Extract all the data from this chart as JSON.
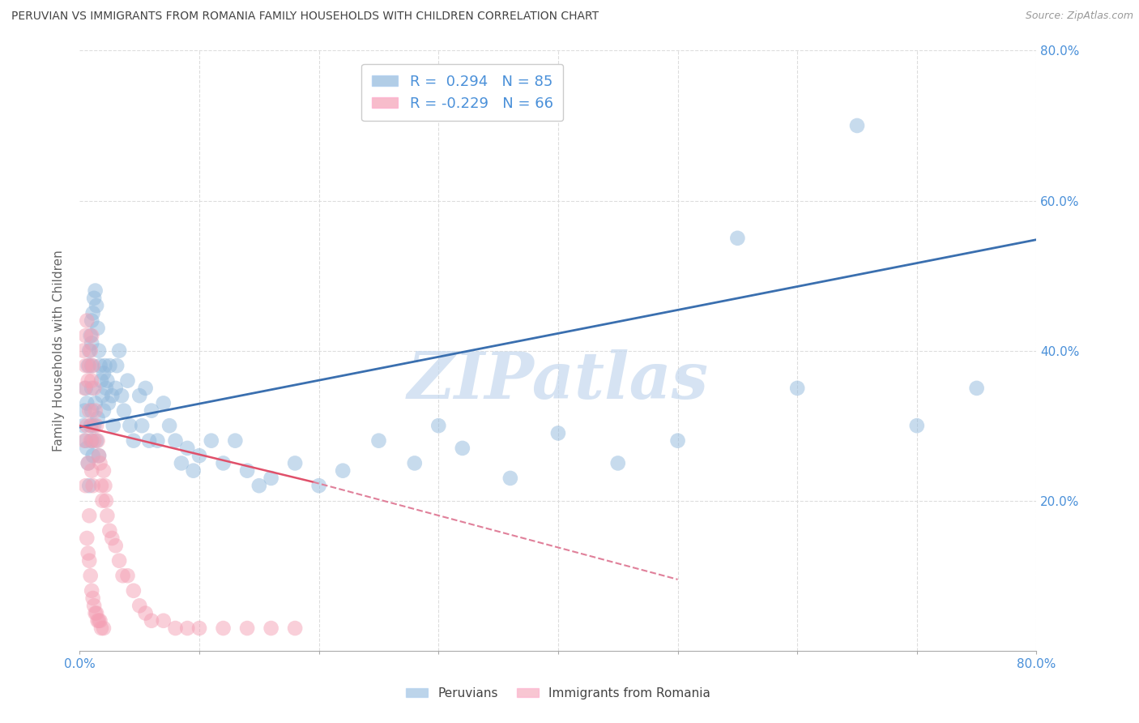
{
  "title": "PERUVIAN VS IMMIGRANTS FROM ROMANIA FAMILY HOUSEHOLDS WITH CHILDREN CORRELATION CHART",
  "source": "Source: ZipAtlas.com",
  "ylabel": "Family Households with Children",
  "xlim": [
    0.0,
    0.8
  ],
  "ylim": [
    0.0,
    0.8
  ],
  "xticks": [
    0.0,
    0.1,
    0.2,
    0.3,
    0.4,
    0.5,
    0.6,
    0.7,
    0.8
  ],
  "yticks": [
    0.2,
    0.4,
    0.6,
    0.8
  ],
  "ytick_labels": [
    "20.0%",
    "40.0%",
    "60.0%",
    "80.0%"
  ],
  "xtick_labels_show": [
    "0.0%",
    "",
    "",
    "",
    "",
    "",
    "",
    "",
    "80.0%"
  ],
  "blue_color": "#90B8DC",
  "pink_color": "#F4A0B5",
  "blue_R": "0.294",
  "blue_N": "85",
  "pink_R": "-0.229",
  "pink_N": "66",
  "blue_line_start_x": 0.0,
  "blue_line_start_y": 0.298,
  "blue_line_end_x": 0.8,
  "blue_line_end_y": 0.548,
  "pink_line_solid_start_x": 0.0,
  "pink_line_solid_start_y": 0.3,
  "pink_line_solid_end_x": 0.195,
  "pink_line_solid_end_y": 0.225,
  "pink_line_dash_start_x": 0.195,
  "pink_line_dash_start_y": 0.225,
  "pink_line_dash_end_x": 0.5,
  "pink_line_dash_end_y": 0.095,
  "watermark": "ZIPatlas",
  "watermark_color": "#C5D8EE",
  "background_color": "#FFFFFF",
  "grid_color": "#DDDDDD",
  "axis_label_color": "#4A90D9",
  "ylabel_color": "#666666",
  "source_color": "#999999",
  "legend_text_color": "#4A90D9",
  "blue_scatter_x": [
    0.003,
    0.004,
    0.005,
    0.005,
    0.006,
    0.006,
    0.007,
    0.007,
    0.008,
    0.008,
    0.009,
    0.009,
    0.01,
    0.01,
    0.01,
    0.01,
    0.01,
    0.01,
    0.011,
    0.011,
    0.012,
    0.012,
    0.013,
    0.013,
    0.014,
    0.014,
    0.015,
    0.015,
    0.016,
    0.016,
    0.017,
    0.018,
    0.019,
    0.02,
    0.02,
    0.021,
    0.022,
    0.023,
    0.024,
    0.025,
    0.027,
    0.028,
    0.03,
    0.031,
    0.033,
    0.035,
    0.037,
    0.04,
    0.042,
    0.045,
    0.05,
    0.052,
    0.055,
    0.058,
    0.06,
    0.065,
    0.07,
    0.075,
    0.08,
    0.085,
    0.09,
    0.095,
    0.1,
    0.11,
    0.12,
    0.13,
    0.14,
    0.15,
    0.16,
    0.18,
    0.2,
    0.22,
    0.25,
    0.28,
    0.3,
    0.32,
    0.36,
    0.4,
    0.45,
    0.5,
    0.55,
    0.6,
    0.65,
    0.7,
    0.75
  ],
  "blue_scatter_y": [
    0.3,
    0.32,
    0.28,
    0.35,
    0.33,
    0.27,
    0.38,
    0.25,
    0.4,
    0.22,
    0.42,
    0.3,
    0.44,
    0.41,
    0.38,
    0.35,
    0.32,
    0.28,
    0.45,
    0.26,
    0.47,
    0.3,
    0.48,
    0.33,
    0.46,
    0.28,
    0.43,
    0.31,
    0.4,
    0.26,
    0.38,
    0.36,
    0.34,
    0.37,
    0.32,
    0.38,
    0.35,
    0.36,
    0.33,
    0.38,
    0.34,
    0.3,
    0.35,
    0.38,
    0.4,
    0.34,
    0.32,
    0.36,
    0.3,
    0.28,
    0.34,
    0.3,
    0.35,
    0.28,
    0.32,
    0.28,
    0.33,
    0.3,
    0.28,
    0.25,
    0.27,
    0.24,
    0.26,
    0.28,
    0.25,
    0.28,
    0.24,
    0.22,
    0.23,
    0.25,
    0.22,
    0.24,
    0.28,
    0.25,
    0.3,
    0.27,
    0.23,
    0.29,
    0.25,
    0.28,
    0.55,
    0.35,
    0.7,
    0.3,
    0.35
  ],
  "pink_scatter_x": [
    0.003,
    0.004,
    0.004,
    0.005,
    0.005,
    0.005,
    0.006,
    0.006,
    0.007,
    0.007,
    0.008,
    0.008,
    0.008,
    0.009,
    0.009,
    0.01,
    0.01,
    0.01,
    0.01,
    0.011,
    0.011,
    0.012,
    0.012,
    0.013,
    0.014,
    0.015,
    0.016,
    0.017,
    0.018,
    0.019,
    0.02,
    0.021,
    0.022,
    0.023,
    0.025,
    0.027,
    0.03,
    0.033,
    0.036,
    0.04,
    0.045,
    0.05,
    0.055,
    0.06,
    0.07,
    0.08,
    0.09,
    0.1,
    0.12,
    0.14,
    0.16,
    0.18,
    0.006,
    0.007,
    0.008,
    0.009,
    0.01,
    0.011,
    0.012,
    0.013,
    0.014,
    0.015,
    0.016,
    0.017,
    0.018,
    0.02
  ],
  "pink_scatter_y": [
    0.4,
    0.35,
    0.28,
    0.42,
    0.38,
    0.22,
    0.44,
    0.3,
    0.36,
    0.25,
    0.38,
    0.32,
    0.18,
    0.4,
    0.28,
    0.42,
    0.36,
    0.3,
    0.24,
    0.38,
    0.22,
    0.35,
    0.28,
    0.32,
    0.3,
    0.28,
    0.26,
    0.25,
    0.22,
    0.2,
    0.24,
    0.22,
    0.2,
    0.18,
    0.16,
    0.15,
    0.14,
    0.12,
    0.1,
    0.1,
    0.08,
    0.06,
    0.05,
    0.04,
    0.04,
    0.03,
    0.03,
    0.03,
    0.03,
    0.03,
    0.03,
    0.03,
    0.15,
    0.13,
    0.12,
    0.1,
    0.08,
    0.07,
    0.06,
    0.05,
    0.05,
    0.04,
    0.04,
    0.04,
    0.03,
    0.03
  ]
}
